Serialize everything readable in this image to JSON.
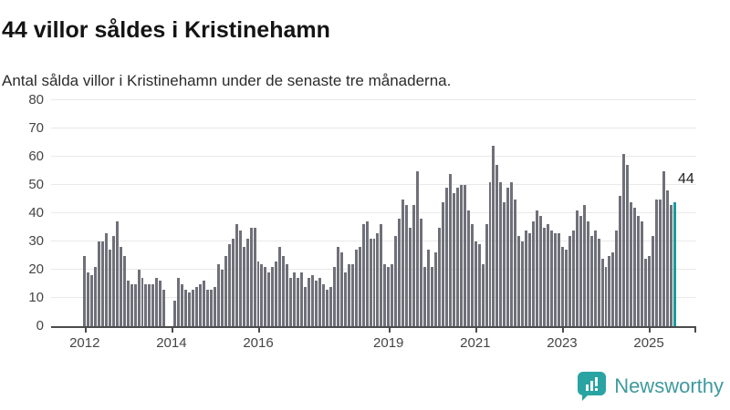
{
  "header": {
    "title": "44 villor såldes i Kristinehamn",
    "subtitle": "Antal sålda villor i Kristinehamn under de senaste tre månaderna."
  },
  "annotation": {
    "last_value_label": "44"
  },
  "branding": {
    "name": "Newsworthy",
    "icon": "bar-chart-speech-bubble"
  },
  "colors": {
    "bar": "#70707a",
    "highlight": "#189b9b",
    "axis": "#4c4c4c",
    "grid": "#e9e9e9",
    "text": "#141414",
    "axis_text": "#454545",
    "brand_text": "#3e9a9d",
    "brand_icon": "#2aa3a3"
  },
  "chart_data": {
    "type": "bar",
    "title": "44 villor såldes i Kristinehamn",
    "subtitle": "Antal sålda villor i Kristinehamn under de senaste tre månaderna.",
    "frequency": "monthly",
    "start_month": "2012-01",
    "end_month": "2025-08",
    "grid": true,
    "legend": false,
    "y_max": 80,
    "y_ticks": [
      0,
      10,
      20,
      30,
      40,
      50,
      60,
      70,
      80
    ],
    "x_ticks": [
      {
        "label": "2012",
        "month_index": 0
      },
      {
        "label": "2014",
        "month_index": 24
      },
      {
        "label": "2016",
        "month_index": 48
      },
      {
        "label": "2019",
        "month_index": 84
      },
      {
        "label": "2021",
        "month_index": 108
      },
      {
        "label": "2023",
        "month_index": 132
      },
      {
        "label": "2025",
        "month_index": 156
      },
      {
        "label": "",
        "month_index": 168.5
      }
    ],
    "highlight_last_bar": true,
    "last_value": 44,
    "values": [
      25,
      19,
      18,
      21,
      30,
      30,
      33,
      27,
      32,
      37,
      28,
      25,
      16,
      15,
      15,
      20,
      17,
      15,
      15,
      15,
      17,
      16,
      13,
      0,
      0,
      9,
      17,
      15,
      13,
      12,
      13,
      14,
      15,
      16,
      13,
      13,
      14,
      22,
      20,
      25,
      29,
      31,
      36,
      34,
      28,
      31,
      35,
      35,
      23,
      22,
      21,
      19,
      21,
      23,
      28,
      25,
      22,
      17,
      19,
      17,
      19,
      14,
      17,
      18,
      16,
      17,
      15,
      13,
      14,
      21,
      28,
      26,
      19,
      22,
      22,
      27,
      28,
      36,
      37,
      31,
      31,
      33,
      36,
      22,
      21,
      22,
      32,
      38,
      45,
      43,
      35,
      43,
      55,
      38,
      21,
      27,
      21,
      26,
      35,
      44,
      49,
      54,
      47,
      49,
      50,
      50,
      41,
      36,
      30,
      29,
      22,
      36,
      51,
      64,
      57,
      51,
      44,
      49,
      51,
      45,
      32,
      30,
      34,
      33,
      37,
      41,
      39,
      35,
      36,
      34,
      33,
      33,
      28,
      27,
      32,
      34,
      41,
      39,
      43,
      37,
      32,
      34,
      31,
      24,
      21,
      25,
      26,
      34,
      46,
      61,
      57,
      44,
      42,
      39,
      37,
      24,
      25,
      32,
      45,
      45,
      55,
      48,
      43,
      44
    ]
  }
}
